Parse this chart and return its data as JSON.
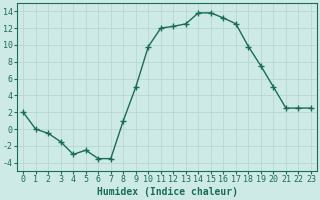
{
  "x": [
    0,
    1,
    2,
    3,
    4,
    5,
    6,
    7,
    8,
    9,
    10,
    11,
    12,
    13,
    14,
    15,
    16,
    17,
    18,
    19,
    20,
    21,
    22,
    23
  ],
  "y": [
    2,
    0,
    -0.5,
    -1.5,
    -3,
    -2.5,
    -3.5,
    -3.5,
    1,
    5,
    9.8,
    12,
    12.2,
    12.5,
    13.8,
    13.8,
    13.2,
    12.5,
    9.8,
    7.5,
    5,
    2.5,
    2.5,
    2.5
  ],
  "line_color": "#1a6b5a",
  "marker": "+",
  "marker_size": 4,
  "marker_lw": 1.0,
  "line_width": 1.0,
  "background_color": "#ceeae6",
  "grid_color": "#b8d8d4",
  "xlabel": "Humidex (Indice chaleur)",
  "xlabel_fontsize": 7,
  "tick_fontsize": 6,
  "xlim": [
    -0.5,
    23.5
  ],
  "ylim": [
    -5,
    15
  ],
  "yticks": [
    -4,
    -2,
    0,
    2,
    4,
    6,
    8,
    10,
    12,
    14
  ],
  "xticks": [
    0,
    1,
    2,
    3,
    4,
    5,
    6,
    7,
    8,
    9,
    10,
    11,
    12,
    13,
    14,
    15,
    16,
    17,
    18,
    19,
    20,
    21,
    22,
    23
  ]
}
